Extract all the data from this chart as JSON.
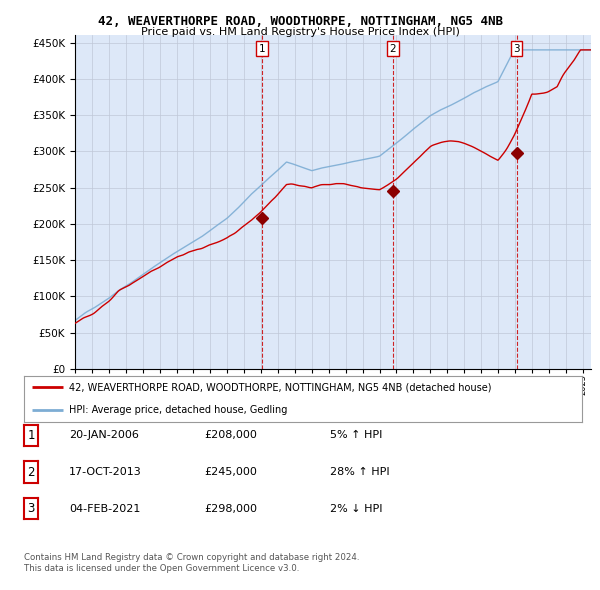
{
  "title1": "42, WEAVERTHORPE ROAD, WOODTHORPE, NOTTINGHAM, NG5 4NB",
  "title2": "Price paid vs. HM Land Registry's House Price Index (HPI)",
  "legend_line1": "42, WEAVERTHORPE ROAD, WOODTHORPE, NOTTINGHAM, NG5 4NB (detached house)",
  "legend_line2": "HPI: Average price, detached house, Gedling",
  "transactions": [
    {
      "num": 1,
      "date": "20-JAN-2006",
      "price": "£208,000",
      "pct": "5%",
      "dir": "↑",
      "label": "HPI",
      "year": 2006.05,
      "price_val": 208000
    },
    {
      "num": 2,
      "date": "17-OCT-2013",
      "price": "£245,000",
      "pct": "28%",
      "dir": "↑",
      "label": "HPI",
      "year": 2013.8,
      "price_val": 245000
    },
    {
      "num": 3,
      "date": "04-FEB-2021",
      "price": "£298,000",
      "pct": "2%",
      "dir": "↓",
      "label": "HPI",
      "year": 2021.1,
      "price_val": 298000
    }
  ],
  "footer1": "Contains HM Land Registry data © Crown copyright and database right 2024.",
  "footer2": "This data is licensed under the Open Government Licence v3.0.",
  "xmin": 1995.0,
  "xmax": 2025.5,
  "ymin": 0,
  "ymax": 460000,
  "yticks": [
    0,
    50000,
    100000,
    150000,
    200000,
    250000,
    300000,
    350000,
    400000,
    450000
  ],
  "bg_color": "#ffffff",
  "plot_bg": "#dde8f8",
  "red_line_color": "#cc0000",
  "blue_line_color": "#7dadd4",
  "vline_color": "#cc0000",
  "grid_color": "#c0c8d8",
  "marker_color": "#8b0000"
}
